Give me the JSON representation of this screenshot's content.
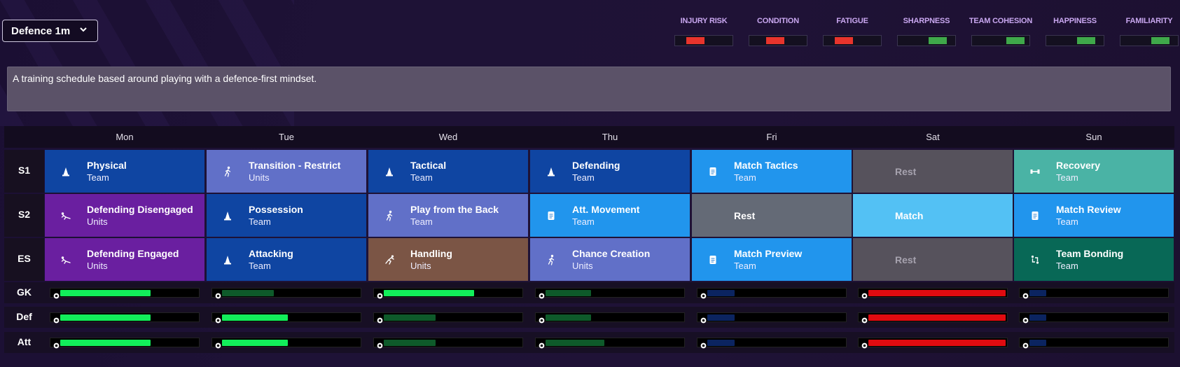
{
  "schedule": {
    "name": "Defence 1m"
  },
  "stats": [
    {
      "label": "INJURY RISK",
      "level": 0.35,
      "color": "#e8342c"
    },
    {
      "label": "CONDITION",
      "level": 0.45,
      "color": "#e8342c"
    },
    {
      "label": "FATIGUE",
      "level": 0.35,
      "color": "#e8342c"
    },
    {
      "label": "SHARPNESS",
      "level": 0.7,
      "color": "#3fa84a"
    },
    {
      "label": "TEAM COHESION",
      "level": 0.75,
      "color": "#3fa84a"
    },
    {
      "label": "HAPPINESS",
      "level": 0.7,
      "color": "#3fa84a"
    },
    {
      "label": "FAMILIARITY",
      "level": 0.7,
      "color": "#3fa84a"
    }
  ],
  "description": "A training schedule based around playing with a defence-first mindset.",
  "days": [
    "Mon",
    "Tue",
    "Wed",
    "Thu",
    "Fri",
    "Sat",
    "Sun"
  ],
  "sessions": [
    "S1",
    "S2",
    "ES"
  ],
  "cells": [
    [
      {
        "name": "Physical",
        "sub": "Team",
        "icon": "cone-icon",
        "color": "#0f45a2"
      },
      {
        "name": "Transition - Restrict",
        "sub": "Units",
        "icon": "running-player-icon",
        "color": "#6170c8"
      },
      {
        "name": "Tactical",
        "sub": "Team",
        "icon": "cone-icon",
        "color": "#0f45a2"
      },
      {
        "name": "Defending",
        "sub": "Team",
        "icon": "cone-icon",
        "color": "#0f45a2"
      },
      {
        "name": "Match Tactics",
        "sub": "Team",
        "icon": "clipboard-icon",
        "color": "#2195ed"
      },
      {
        "name": "Rest",
        "sub": "",
        "icon": "",
        "color": "#56525c",
        "rest": true
      },
      {
        "name": "Recovery",
        "sub": "Team",
        "icon": "dumbbell-icon",
        "color": "#4ab3a5"
      }
    ],
    [
      {
        "name": "Defending Disengaged",
        "sub": "Units",
        "icon": "slide-tackle-icon",
        "color": "#6a1fa0"
      },
      {
        "name": "Possession",
        "sub": "Team",
        "icon": "cone-icon",
        "color": "#0f45a2"
      },
      {
        "name": "Play from the Back",
        "sub": "Team",
        "icon": "running-player-icon",
        "color": "#6170c8"
      },
      {
        "name": "Att. Movement",
        "sub": "Team",
        "icon": "clipboard-icon",
        "color": "#2195ed"
      },
      {
        "name": "Rest",
        "sub": "",
        "icon": "",
        "color": "#646a76",
        "plain": true
      },
      {
        "name": "Match",
        "sub": "",
        "icon": "",
        "color": "#53c1f4",
        "plain": true
      },
      {
        "name": "Match Review",
        "sub": "Team",
        "icon": "clipboard-icon",
        "color": "#2195ed"
      }
    ],
    [
      {
        "name": "Defending Engaged",
        "sub": "Units",
        "icon": "slide-tackle-icon",
        "color": "#6a1fa0"
      },
      {
        "name": "Attacking",
        "sub": "Team",
        "icon": "cone-icon",
        "color": "#0f45a2"
      },
      {
        "name": "Handling",
        "sub": "Units",
        "icon": "goalkeeper-dive-icon",
        "color": "#7b5545"
      },
      {
        "name": "Chance Creation",
        "sub": "Units",
        "icon": "running-player-icon",
        "color": "#6170c8"
      },
      {
        "name": "Match Preview",
        "sub": "Team",
        "icon": "clipboard-icon",
        "color": "#2195ed"
      },
      {
        "name": "Rest",
        "sub": "",
        "icon": "",
        "color": "#56525c",
        "rest": true
      },
      {
        "name": "Team Bonding",
        "sub": "Team",
        "icon": "people-cycle-icon",
        "color": "#086856"
      }
    ]
  ],
  "positions": [
    "GK",
    "Def",
    "Att"
  ],
  "load_levels": [
    [
      0.66,
      0.38,
      0.66,
      0.33,
      0.2,
      1.0,
      0.12
    ],
    [
      0.66,
      0.48,
      0.38,
      0.33,
      0.2,
      1.0,
      0.12
    ],
    [
      0.66,
      0.48,
      0.38,
      0.43,
      0.2,
      1.0,
      0.12
    ]
  ],
  "load_colors": [
    [
      "#12ee5a",
      "#0e5a2a",
      "#12ee5a",
      "#0e5a2a",
      "#0b2460",
      "#e00b10",
      "#0b2460"
    ],
    [
      "#12ee5a",
      "#12ee5a",
      "#0e5a2a",
      "#0e5a2a",
      "#0b2460",
      "#e00b10",
      "#0b2460"
    ],
    [
      "#12ee5a",
      "#12ee5a",
      "#0e5a2a",
      "#0e5a2a",
      "#0b2460",
      "#e00b10",
      "#0b2460"
    ]
  ]
}
